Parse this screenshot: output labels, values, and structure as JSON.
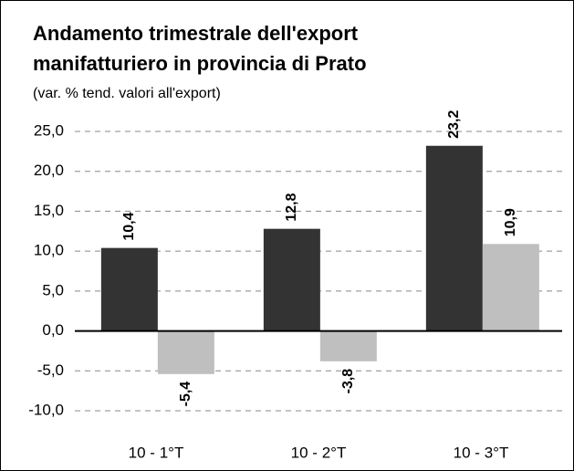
{
  "chart_data": {
    "type": "bar",
    "title_lines": [
      "Andamento trimestrale dell'export",
      "manifatturiero in provincia di Prato"
    ],
    "subtitle": "(var. % tend. valori all'export)",
    "categories": [
      "10 - 1°T",
      "10 - 2°T",
      "10 - 3°T"
    ],
    "series": [
      {
        "color": "#333333",
        "values": [
          10.4,
          12.8,
          23.2
        ],
        "value_labels": [
          "10,4",
          "12,8",
          "23,2"
        ]
      },
      {
        "color": "#bfbfbf",
        "values": [
          -5.4,
          -3.8,
          10.9
        ],
        "value_labels": [
          "-5,4",
          "-3,8",
          "10,9"
        ]
      }
    ],
    "ylim": [
      -10,
      25
    ],
    "yticks": [
      {
        "value": -10,
        "label": "-10,0"
      },
      {
        "value": -5,
        "label": "-5,0"
      },
      {
        "value": 0,
        "label": "0,0"
      },
      {
        "value": 5,
        "label": "5,0"
      },
      {
        "value": 10,
        "label": "10,0"
      },
      {
        "value": 15,
        "label": "15,0"
      },
      {
        "value": 20,
        "label": "20,0"
      },
      {
        "value": 25,
        "label": "25,0"
      }
    ],
    "grid": true
  }
}
